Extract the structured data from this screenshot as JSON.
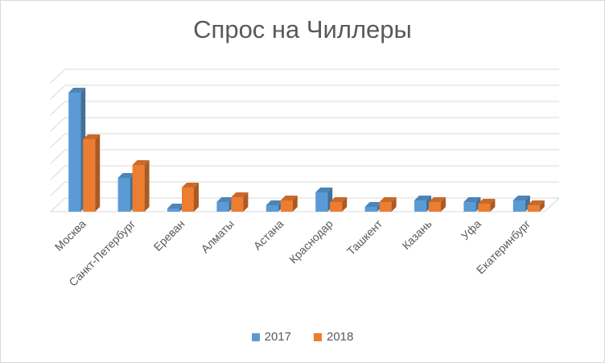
{
  "chart_data": {
    "type": "bar",
    "title": "Спрос на Чиллеры",
    "xlabel": "",
    "ylabel": "",
    "categories": [
      "Москва",
      "Санкт-Петербург",
      "Ереван",
      "Алматы",
      "Астана",
      "Краснодар",
      "Ташкент",
      "Казань",
      "Уфа",
      "Екатеринбург"
    ],
    "series": [
      {
        "name": "2017",
        "values": [
          7.4,
          2.1,
          0.2,
          0.6,
          0.4,
          1.2,
          0.3,
          0.7,
          0.6,
          0.7
        ]
      },
      {
        "name": "2018",
        "values": [
          4.5,
          2.9,
          1.5,
          0.9,
          0.7,
          0.6,
          0.6,
          0.6,
          0.5,
          0.4
        ]
      }
    ],
    "ylim": [
      0,
      8
    ],
    "grid": true,
    "legend": "bottom",
    "style": "3d-clustered-column",
    "colors": {
      "2017": "#5B9BD5",
      "2018": "#ED7D31"
    }
  }
}
